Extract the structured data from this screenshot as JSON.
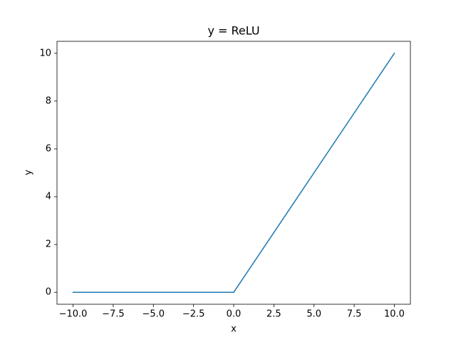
{
  "chart_data": {
    "type": "line",
    "title": "y = ReLU",
    "xlabel": "x",
    "ylabel": "y",
    "x": [
      -10,
      0,
      10
    ],
    "series": [
      {
        "color": "#1f77b4",
        "values": [
          0,
          0,
          10
        ]
      }
    ],
    "xlim": [
      -11,
      11
    ],
    "ylim": [
      -0.5,
      10.5
    ],
    "xticks": [
      {
        "value": -10,
        "label": "−10.0"
      },
      {
        "value": -7.5,
        "label": "−7.5"
      },
      {
        "value": -5,
        "label": "−5.0"
      },
      {
        "value": -2.5,
        "label": "−2.5"
      },
      {
        "value": 0,
        "label": "0.0"
      },
      {
        "value": 2.5,
        "label": "2.5"
      },
      {
        "value": 5,
        "label": "5.0"
      },
      {
        "value": 7.5,
        "label": "7.5"
      },
      {
        "value": 10,
        "label": "10.0"
      }
    ],
    "yticks": [
      0,
      2,
      4,
      6,
      8,
      10
    ],
    "grid": false
  }
}
